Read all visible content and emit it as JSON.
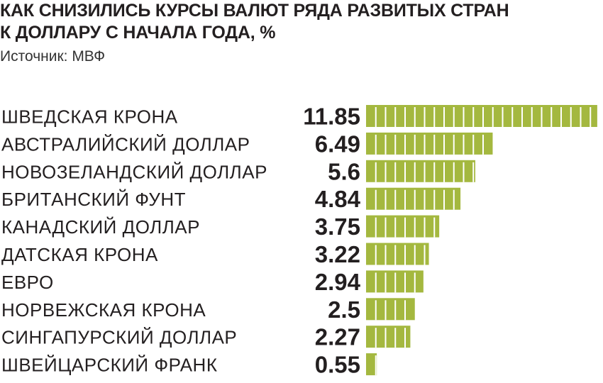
{
  "header": {
    "title_line1": "КАК СНИЗИЛИСЬ КУРСЫ ВАЛЮТ РЯДА РАЗВИТЫХ СТРАН",
    "title_line2": "К ДОЛЛАРУ С НАЧАЛА ГОДА, %",
    "source": "Источник: МВФ"
  },
  "chart_data": {
    "type": "bar",
    "orientation": "horizontal",
    "title": "КАК СНИЗИЛИСЬ КУРСЫ ВАЛЮТ РЯДА РАЗВИТЫХ СТРАН К ДОЛЛАРУ С НАЧАЛА ГОДА, %",
    "xlabel": "",
    "ylabel": "",
    "grid": false,
    "legend": "none",
    "categories": [
      "ШВЕДСКАЯ КРОНА",
      "АВСТРАЛИЙСКИЙ ДОЛЛАР",
      "НОВОЗЕЛАНДСКИЙ ДОЛЛАР",
      "БРИТАНСКИЙ ФУНТ",
      "КАНАДСКИЙ ДОЛЛАР",
      "ДАТСКАЯ КРОНА",
      "ЕВРО",
      "НОРВЕЖСКАЯ КРОНА",
      "СИНГАПУРСКИЙ ДОЛЛАР",
      "ШВЕЙЦАРСКИЙ ФРАНК"
    ],
    "values": [
      11.85,
      6.49,
      5.6,
      4.84,
      3.75,
      3.22,
      2.94,
      2.5,
      2.27,
      0.55
    ],
    "value_labels": [
      "11.85",
      "6.49",
      "5.6",
      "4.84",
      "3.75",
      "3.22",
      "2.94",
      "2.5",
      "2.27",
      "0.55"
    ],
    "xlim": [
      0,
      12
    ],
    "segment_unit": 0.5,
    "colors": {
      "bar": "#a4b83f",
      "segment_divider": "#ffffff",
      "text": "#231f20"
    }
  }
}
